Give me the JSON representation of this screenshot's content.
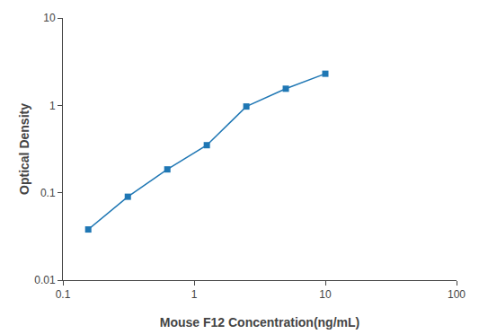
{
  "chart_data": {
    "type": "line",
    "x": [
      0.156,
      0.3125,
      0.625,
      1.25,
      2.5,
      5.0,
      10.0
    ],
    "values": [
      0.038,
      0.09,
      0.185,
      0.35,
      0.97,
      1.55,
      2.3
    ],
    "xlabel": "Mouse F12 Concentration(ng/mL)",
    "ylabel": "Optical Density",
    "xlim": [
      0.1,
      100
    ],
    "ylim": [
      0.01,
      10
    ],
    "xticks": [
      0.1,
      1,
      10,
      100
    ],
    "yticks": [
      0.01,
      0.1,
      1,
      10
    ],
    "log": true,
    "grid": false,
    "marker": "square"
  }
}
